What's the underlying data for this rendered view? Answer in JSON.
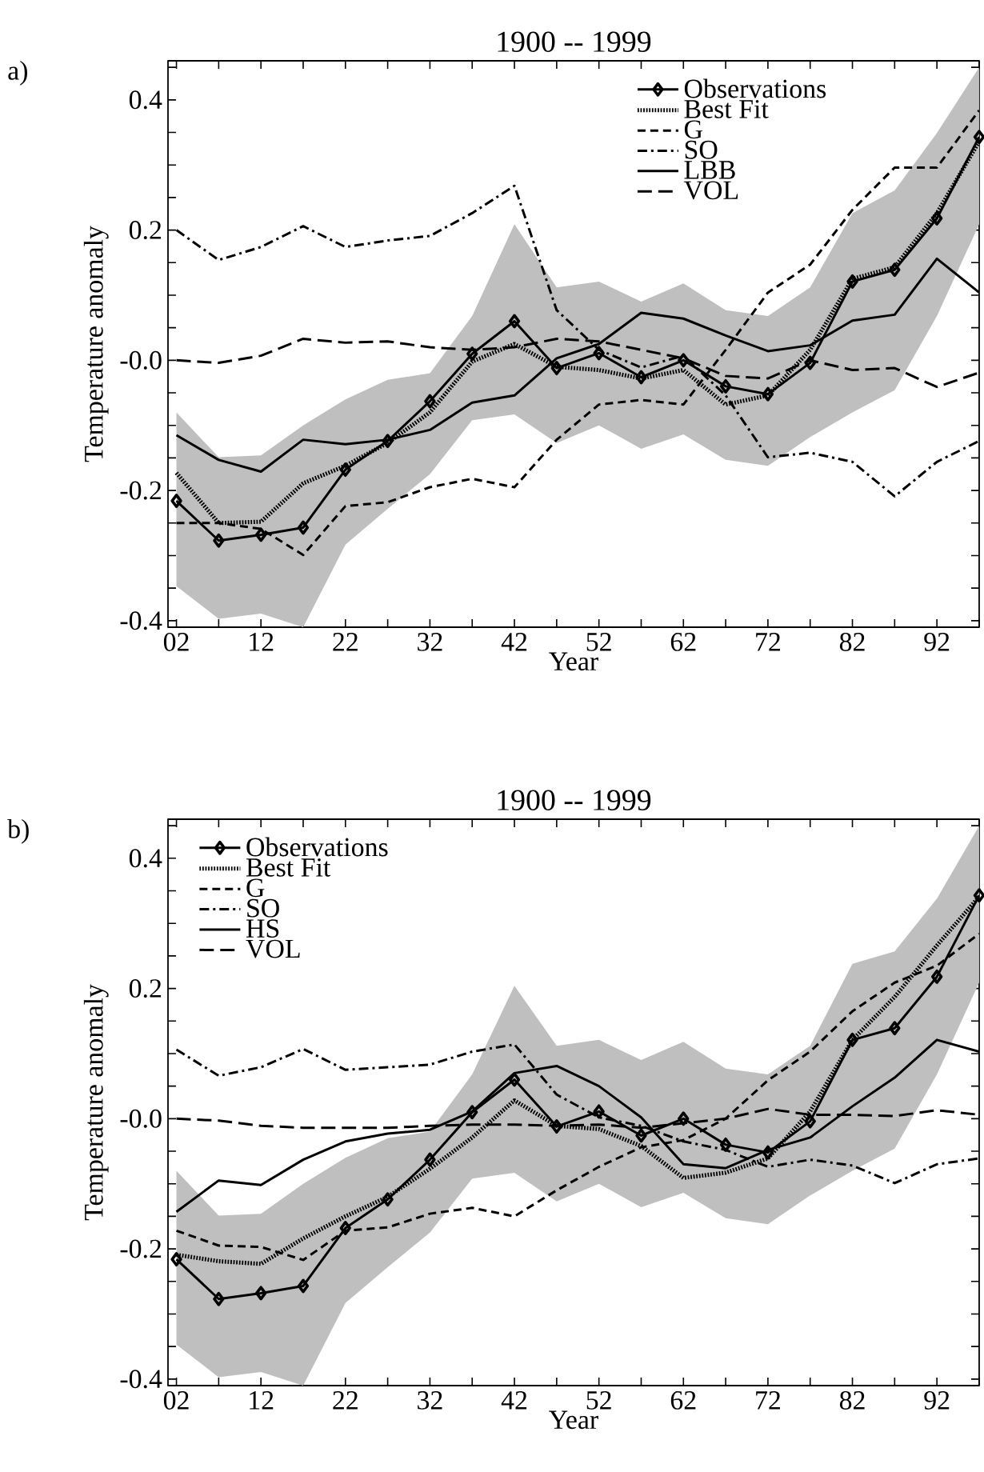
{
  "chart_data": [
    {
      "type": "line",
      "title": "1900 -- 1999",
      "xlabel": "Year",
      "ylabel": "Temperature anomaly",
      "annotations": [
        "a)"
      ],
      "xlim": [
        1,
        97
      ],
      "ylim": [
        -0.41,
        0.46
      ],
      "xticks": [
        {
          "value": 2,
          "label": "02"
        },
        {
          "value": 7,
          "label": null
        },
        12,
        {
          "value": 17,
          "label": null
        },
        22,
        {
          "value": 27,
          "label": null
        },
        32,
        {
          "value": 37,
          "label": null
        },
        42,
        {
          "value": 47,
          "label": null
        },
        52,
        {
          "value": 57,
          "label": null
        },
        62,
        {
          "value": 67,
          "label": null
        },
        72,
        {
          "value": 77,
          "label": null
        },
        82,
        {
          "value": 87,
          "label": null
        },
        92,
        {
          "value": 97,
          "label": null
        }
      ],
      "yticks": [
        -0.4,
        {
          "value": -0.35,
          "label": null
        },
        {
          "value": -0.3,
          "label": null
        },
        {
          "value": -0.25,
          "label": null
        },
        -0.2,
        {
          "value": -0.15,
          "label": null
        },
        {
          "value": -0.1,
          "label": null
        },
        {
          "value": -0.05,
          "label": null
        },
        {
          "value": 0,
          "label": "-0.0"
        },
        {
          "value": 0.05,
          "label": null
        },
        {
          "value": 0.1,
          "label": null
        },
        {
          "value": 0.15,
          "label": null
        },
        0.2,
        {
          "value": 0.25,
          "label": null
        },
        {
          "value": 0.3,
          "label": null
        },
        {
          "value": 0.35,
          "label": null
        },
        0.4,
        {
          "value": 0.45,
          "label": null
        }
      ],
      "legend": "top right",
      "grid": false,
      "x": [
        2,
        7,
        12,
        17,
        22,
        27,
        32,
        37,
        42,
        47,
        52,
        57,
        62,
        67,
        72,
        77,
        82,
        87,
        92,
        97
      ],
      "series": [
        {
          "name": "Observations",
          "color": "#000000",
          "marker": "diamond",
          "line_style": "solid",
          "values": [
            -0.216,
            -0.277,
            -0.268,
            -0.257,
            -0.168,
            -0.124,
            -0.063,
            0.01,
            0.06,
            -0.012,
            0.011,
            -0.026,
            0.0,
            -0.04,
            -0.052,
            -0.004,
            0.121,
            0.139,
            0.218,
            0.343
          ],
          "upper": [
            -0.08,
            -0.149,
            -0.146,
            -0.1,
            -0.06,
            -0.03,
            -0.02,
            0.068,
            0.209,
            0.112,
            0.121,
            0.09,
            0.118,
            0.077,
            0.068,
            0.112,
            0.226,
            0.261,
            0.349,
            0.45
          ],
          "lower": [
            -0.347,
            -0.397,
            -0.389,
            -0.41,
            -0.283,
            -0.228,
            -0.175,
            -0.092,
            -0.083,
            -0.127,
            -0.1,
            -0.136,
            -0.114,
            -0.153,
            -0.162,
            -0.118,
            -0.08,
            -0.046,
            0.068,
            0.209
          ]
        },
        {
          "name": "Best Fit",
          "color": "#000000",
          "marker": "none",
          "line_style": "dotted",
          "values": [
            -0.173,
            -0.25,
            -0.248,
            -0.189,
            -0.162,
            -0.127,
            -0.08,
            -0.002,
            0.025,
            -0.01,
            -0.015,
            -0.028,
            -0.015,
            -0.068,
            -0.054,
            0.016,
            0.125,
            0.143,
            0.226,
            0.336
          ]
        },
        {
          "name": "G",
          "color": "#000000",
          "marker": "none",
          "line_style": "dashed",
          "values": [
            -0.25,
            -0.25,
            -0.259,
            -0.299,
            -0.224,
            -0.218,
            -0.195,
            -0.182,
            -0.195,
            -0.122,
            -0.068,
            -0.061,
            -0.068,
            0.016,
            0.104,
            0.147,
            0.231,
            0.296,
            0.296,
            0.384
          ]
        },
        {
          "name": "SO",
          "color": "#000000",
          "marker": "none",
          "line_style": "dashdot",
          "values": [
            0.2,
            0.154,
            0.174,
            0.206,
            0.174,
            0.184,
            0.191,
            0.226,
            0.268,
            0.077,
            0.016,
            -0.011,
            0.007,
            -0.054,
            -0.149,
            -0.142,
            -0.156,
            -0.209,
            -0.156,
            -0.124
          ]
        },
        {
          "name": "LBB",
          "color": "#000000",
          "marker": "none",
          "line_style": "solid",
          "values": [
            -0.115,
            -0.153,
            -0.171,
            -0.122,
            -0.129,
            -0.122,
            -0.107,
            -0.065,
            -0.054,
            0.003,
            0.025,
            0.073,
            0.064,
            0.038,
            0.014,
            0.023,
            0.061,
            0.07,
            0.156,
            0.104
          ]
        },
        {
          "name": "VOL",
          "color": "#000000",
          "marker": "none",
          "line_style": "longdash",
          "values": [
            0.0,
            -0.004,
            0.007,
            0.033,
            0.027,
            0.029,
            0.02,
            0.016,
            0.02,
            0.033,
            0.029,
            0.016,
            0.003,
            -0.024,
            -0.028,
            0.0,
            -0.015,
            -0.012,
            -0.041,
            -0.019
          ]
        }
      ]
    },
    {
      "type": "line",
      "title": "1900 -- 1999",
      "xlabel": "Year",
      "ylabel": "Temperature anomaly",
      "annotations": [
        "b)"
      ],
      "xlim": [
        1,
        97
      ],
      "ylim": [
        -0.41,
        0.46
      ],
      "xticks": [
        {
          "value": 2,
          "label": "02"
        },
        {
          "value": 7,
          "label": null
        },
        12,
        {
          "value": 17,
          "label": null
        },
        22,
        {
          "value": 27,
          "label": null
        },
        32,
        {
          "value": 37,
          "label": null
        },
        42,
        {
          "value": 47,
          "label": null
        },
        52,
        {
          "value": 57,
          "label": null
        },
        62,
        {
          "value": 67,
          "label": null
        },
        72,
        {
          "value": 77,
          "label": null
        },
        82,
        {
          "value": 87,
          "label": null
        },
        92,
        {
          "value": 97,
          "label": null
        }
      ],
      "yticks": [
        -0.4,
        {
          "value": -0.35,
          "label": null
        },
        {
          "value": -0.3,
          "label": null
        },
        {
          "value": -0.25,
          "label": null
        },
        -0.2,
        {
          "value": -0.15,
          "label": null
        },
        {
          "value": -0.1,
          "label": null
        },
        {
          "value": -0.05,
          "label": null
        },
        {
          "value": 0,
          "label": "-0.0"
        },
        {
          "value": 0.05,
          "label": null
        },
        {
          "value": 0.1,
          "label": null
        },
        {
          "value": 0.15,
          "label": null
        },
        0.2,
        {
          "value": 0.25,
          "label": null
        },
        {
          "value": 0.3,
          "label": null
        },
        {
          "value": 0.35,
          "label": null
        },
        0.4,
        {
          "value": 0.45,
          "label": null
        }
      ],
      "legend": "top left",
      "grid": false,
      "x": [
        2,
        7,
        12,
        17,
        22,
        27,
        32,
        37,
        42,
        47,
        52,
        57,
        62,
        67,
        72,
        77,
        82,
        87,
        92,
        97
      ],
      "series": [
        {
          "name": "Observations",
          "color": "#000000",
          "marker": "diamond",
          "line_style": "solid",
          "values": [
            -0.216,
            -0.277,
            -0.268,
            -0.257,
            -0.168,
            -0.124,
            -0.063,
            0.01,
            0.06,
            -0.012,
            0.011,
            -0.026,
            0.0,
            -0.04,
            -0.052,
            -0.004,
            0.121,
            0.139,
            0.218,
            0.343
          ],
          "upper": [
            -0.08,
            -0.149,
            -0.146,
            -0.1,
            -0.06,
            -0.03,
            -0.02,
            0.068,
            0.204,
            0.112,
            0.121,
            0.09,
            0.118,
            0.077,
            0.068,
            0.112,
            0.238,
            0.257,
            0.338,
            0.45
          ],
          "lower": [
            -0.347,
            -0.397,
            -0.389,
            -0.41,
            -0.283,
            -0.228,
            -0.175,
            -0.092,
            -0.083,
            -0.127,
            -0.1,
            -0.136,
            -0.114,
            -0.153,
            -0.162,
            -0.118,
            -0.08,
            -0.046,
            0.068,
            0.209
          ]
        },
        {
          "name": "Best Fit",
          "color": "#000000",
          "marker": "none",
          "line_style": "dotted",
          "values": [
            -0.209,
            -0.219,
            -0.223,
            -0.184,
            -0.15,
            -0.12,
            -0.077,
            -0.029,
            0.028,
            -0.011,
            -0.016,
            -0.042,
            -0.091,
            -0.083,
            -0.061,
            0.011,
            0.121,
            0.187,
            0.266,
            0.341
          ]
        },
        {
          "name": "G",
          "color": "#000000",
          "marker": "none",
          "line_style": "dashed",
          "values": [
            -0.172,
            -0.195,
            -0.197,
            -0.217,
            -0.172,
            -0.167,
            -0.146,
            -0.137,
            -0.15,
            -0.11,
            -0.074,
            -0.044,
            -0.033,
            0.0,
            0.059,
            0.103,
            0.165,
            0.209,
            0.235,
            0.284
          ]
        },
        {
          "name": "SO",
          "color": "#000000",
          "marker": "none",
          "line_style": "dashdot",
          "values": [
            0.106,
            0.066,
            0.079,
            0.107,
            0.075,
            0.079,
            0.083,
            0.103,
            0.114,
            0.037,
            0.002,
            -0.011,
            -0.035,
            -0.048,
            -0.074,
            -0.063,
            -0.072,
            -0.099,
            -0.07,
            -0.061
          ]
        },
        {
          "name": "HS",
          "color": "#000000",
          "marker": "none",
          "line_style": "solid",
          "values": [
            -0.143,
            -0.095,
            -0.102,
            -0.063,
            -0.035,
            -0.023,
            -0.017,
            0.011,
            0.07,
            0.081,
            0.05,
            0.002,
            -0.07,
            -0.076,
            -0.048,
            -0.029,
            0.019,
            0.063,
            0.121,
            0.103
          ]
        },
        {
          "name": "VOL",
          "color": "#000000",
          "marker": "none",
          "line_style": "longdash",
          "values": [
            0.0,
            -0.003,
            -0.011,
            -0.014,
            -0.014,
            -0.014,
            -0.011,
            -0.009,
            -0.009,
            -0.011,
            -0.009,
            -0.014,
            -0.007,
            0.0,
            0.015,
            0.006,
            0.006,
            0.004,
            0.013,
            0.006
          ]
        }
      ]
    }
  ]
}
